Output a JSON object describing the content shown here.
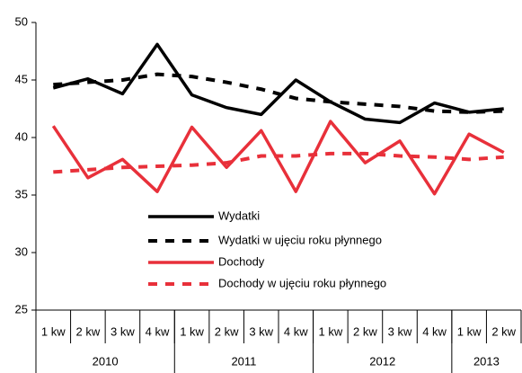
{
  "chart_data": {
    "type": "line",
    "categories": [
      "1 kw",
      "2 kw",
      "3 kw",
      "4 kw",
      "1 kw",
      "2 kw",
      "3 kw",
      "4 kw",
      "1 kw",
      "2 kw",
      "3 kw",
      "4 kw",
      "1 kw",
      "2 kw"
    ],
    "groups": [
      {
        "label": "2010",
        "span": 4
      },
      {
        "label": "2011",
        "span": 4
      },
      {
        "label": "2012",
        "span": 4
      },
      {
        "label": "2013",
        "span": 2
      }
    ],
    "series": [
      {
        "name": "Wydatki",
        "color": "#000000",
        "dashed": false,
        "values": [
          44.3,
          45.1,
          43.8,
          48.1,
          43.7,
          42.6,
          42.0,
          45.0,
          43.1,
          41.6,
          41.3,
          43.0,
          42.2,
          42.5
        ]
      },
      {
        "name": "Wydatki w ujęciu roku płynnego",
        "color": "#000000",
        "dashed": true,
        "values": [
          44.6,
          44.8,
          45.0,
          45.5,
          45.3,
          44.8,
          44.2,
          43.4,
          43.1,
          42.9,
          42.7,
          42.3,
          42.2,
          42.3
        ]
      },
      {
        "name": "Dochody",
        "color": "#e8303a",
        "dashed": false,
        "values": [
          41.0,
          36.5,
          38.1,
          35.3,
          40.9,
          37.4,
          40.6,
          35.3,
          41.4,
          37.8,
          39.7,
          35.1,
          40.3,
          38.7
        ]
      },
      {
        "name": "Dochody w ujęciu roku płynnego",
        "color": "#e8303a",
        "dashed": true,
        "values": [
          37.0,
          37.2,
          37.4,
          37.5,
          37.6,
          37.8,
          38.4,
          38.4,
          38.6,
          38.6,
          38.4,
          38.3,
          38.1,
          38.3
        ]
      }
    ],
    "ylim": [
      25,
      50
    ],
    "yticks": [
      25,
      30,
      35,
      40,
      45,
      50
    ]
  }
}
